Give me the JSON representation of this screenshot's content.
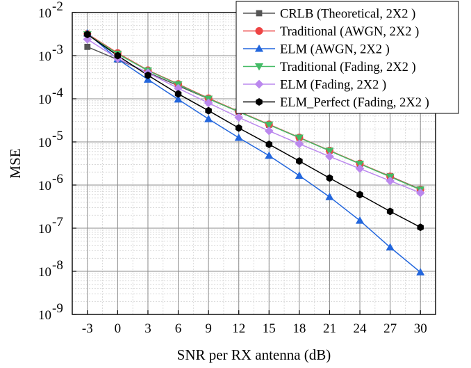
{
  "chart_data": {
    "type": "line",
    "xlabel": "SNR per RX antenna (dB)",
    "ylabel": "MSE",
    "yscale": "log",
    "xlim": [
      -4.5,
      31.5
    ],
    "ylim": [
      1e-09,
      0.01
    ],
    "x": [
      -3,
      0,
      3,
      6,
      9,
      12,
      15,
      18,
      21,
      24,
      27,
      30
    ],
    "x_ticks": [
      "-3",
      "0",
      "3",
      "6",
      "9",
      "12",
      "15",
      "18",
      "21",
      "24",
      "27",
      "30"
    ],
    "y_ticks": [
      {
        "base": "10",
        "exp": "-9",
        "value": 1e-09
      },
      {
        "base": "10",
        "exp": "-8",
        "value": 1e-08
      },
      {
        "base": "10",
        "exp": "-7",
        "value": 1e-07
      },
      {
        "base": "10",
        "exp": "-6",
        "value": 1e-06
      },
      {
        "base": "10",
        "exp": "-5",
        "value": 1e-05
      },
      {
        "base": "10",
        "exp": "-4",
        "value": 0.0001
      },
      {
        "base": "10",
        "exp": "-3",
        "value": 0.001
      },
      {
        "base": "10",
        "exp": "-2",
        "value": 0.01
      }
    ],
    "grid": true,
    "legend_position": "top-right",
    "series": [
      {
        "name": "CRLB (Theoretical, 2X2 )",
        "color": "#555555",
        "marker": "square",
        "values": [
          0.0016,
          0.00081,
          0.00041,
          0.0002,
          0.0001,
          5e-05,
          2.5e-05,
          1.25e-05,
          6.3e-06,
          3.1e-06,
          1.6e-06,
          8e-07
        ]
      },
      {
        "name": "Traditional (AWGN, 2X2 )",
        "color": "#ee4444",
        "marker": "circle",
        "values": [
          0.0032,
          0.00115,
          0.00046,
          0.00022,
          0.000103,
          5.1e-05,
          2.55e-05,
          1.27e-05,
          6.3e-06,
          3.15e-06,
          1.58e-06,
          7.9e-07
        ]
      },
      {
        "name": "ELM (AWGN, 2X2 )",
        "color": "#2266dd",
        "marker": "triangle-up",
        "values": [
          0.0033,
          0.00083,
          0.00028,
          9.7e-05,
          3.4e-05,
          1.25e-05,
          4.8e-06,
          1.65e-06,
          5.3e-07,
          1.5e-07,
          3.6e-08,
          9.5e-09
        ]
      },
      {
        "name": "Traditional (Fading, 2X2 )",
        "color": "#44bb66",
        "marker": "triangle-down",
        "values": [
          0.0031,
          0.0011,
          0.00045,
          0.000215,
          0.0001,
          5e-05,
          2.5e-05,
          1.25e-05,
          6.2e-06,
          3.1e-06,
          1.55e-06,
          7.8e-07
        ]
      },
      {
        "name": "ELM (Fading, 2X2 )",
        "color": "#bb88ee",
        "marker": "diamond",
        "values": [
          0.0024,
          0.00086,
          0.0004,
          0.000175,
          8e-05,
          3.7e-05,
          1.8e-05,
          9e-06,
          4.6e-06,
          2.4e-06,
          1.25e-06,
          6.6e-07
        ]
      },
      {
        "name": "ELM_Perfect (Fading, 2X2 )",
        "color": "#000000",
        "marker": "hexagon",
        "values": [
          0.0031,
          0.001,
          0.00035,
          0.00013,
          5.3e-05,
          2.1e-05,
          8.8e-06,
          3.6e-06,
          1.45e-06,
          6e-07,
          2.45e-07,
          1.05e-07
        ]
      }
    ]
  }
}
